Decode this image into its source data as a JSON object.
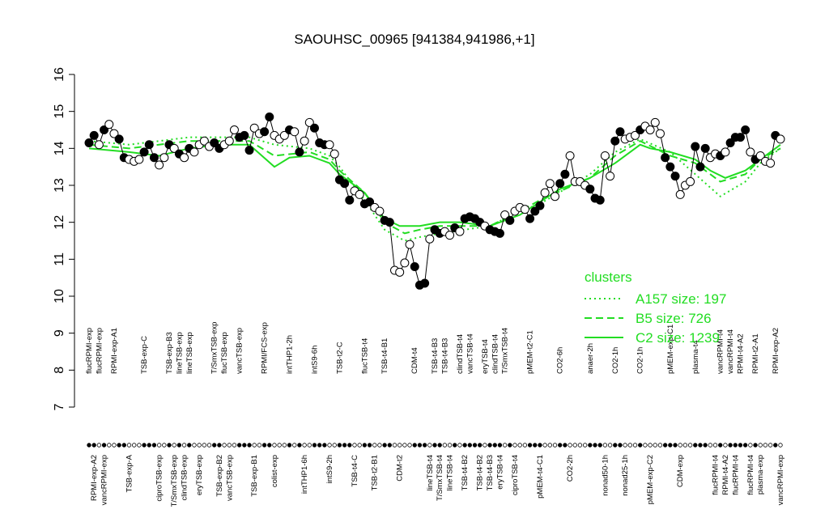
{
  "chart_data": {
    "type": "scatter",
    "title": "SAOUHSC_00965 [941384,941986,+1]",
    "ylim": [
      7,
      16
    ],
    "yticks": [
      7,
      8,
      9,
      10,
      11,
      12,
      13,
      14,
      15,
      16
    ],
    "point_line_color": "#000000",
    "categories": [
      "flucRPMI-exp",
      "RPMI-exp-A2",
      "flucRPMI-exp",
      "vancRPMI-exp",
      null,
      "RPMI-exp-A1",
      null,
      null,
      "TSB-exp-A",
      null,
      null,
      "TSB-exp-C",
      null,
      null,
      "ciproTSB-exp",
      null,
      "TSB-exp-B3",
      "T/SmxTSB-exp",
      "lineTSB-exp",
      "clindTSB-exp",
      "lineTSB-exp",
      null,
      "eryTSB-exp",
      null,
      null,
      "T/SmxTSB-exp",
      "TSB-exp-B2",
      "flucTSB-exp",
      "vancTSB-exp",
      null,
      "vancTSB-exp",
      null,
      null,
      "TSB-exp-B1",
      null,
      "RPMI/FCS-exp",
      null,
      "colist-exp",
      null,
      null,
      "intTHP1-2h",
      null,
      null,
      "intTHP1-6h",
      null,
      "intS9-6h",
      null,
      null,
      "intS9-2h",
      null,
      "TSB-t2-C",
      null,
      null,
      "TSB-t4-C",
      null,
      "flucTSB-t4",
      null,
      "TSB-t2-B1",
      null,
      "TSB-t4-B1",
      null,
      null,
      "CDM-t2",
      null,
      null,
      "CDM-t4",
      null,
      null,
      "lineTSB-t4",
      "TSB-t4-B3",
      "T/SmxTSB-t4",
      "TSB-t4-B3",
      "lineTSB-t4",
      null,
      "clindTSB-t4",
      "TSB-t4-B2",
      "vancTSB-t4",
      null,
      "TSB-t4-B2",
      "eryTSB-t4",
      "TSB-t4-B3",
      "clindTSB-t4",
      "eryTSB-t4",
      "T/SmxTSB-t4",
      null,
      "ciproTSB-t4",
      null,
      null,
      "pMEM-t2-C1",
      null,
      "pMEM-t4-C1",
      null,
      null,
      null,
      "CO2-6h",
      null,
      "CO2-2h",
      null,
      null,
      null,
      "anaer-2h",
      null,
      null,
      "nonad50-1h",
      null,
      "CO2-1h",
      null,
      "nonad25-1h",
      null,
      null,
      "CO2-1h",
      null,
      "pMEM-exp-C2",
      null,
      null,
      null,
      "pMEM-exp-C1",
      null,
      "CDM-exp",
      null,
      null,
      "plasma-t4",
      null,
      null,
      null,
      "flucRPMI-t4",
      "vancRPMI-t4",
      "RPMI-t4-A2",
      "vancRPMI-t4",
      "flucRPMI-t4",
      "RPMI-t4-A2",
      null,
      "flucRPMI-t4",
      "RPMI-t2-A1",
      "plasma-exp",
      null,
      null,
      "RPMI-exp-A2",
      "vancRPMI-exp"
    ],
    "values": [
      14.15,
      14.35,
      14.1,
      14.5,
      14.65,
      14.4,
      14.25,
      13.75,
      13.7,
      13.65,
      13.7,
      13.9,
      14.1,
      13.75,
      13.55,
      13.75,
      14.1,
      14.0,
      13.85,
      13.75,
      14.0,
      13.9,
      14.1,
      14.2,
      14.05,
      14.15,
      14.0,
      14.1,
      14.2,
      14.5,
      14.3,
      14.35,
      13.95,
      14.55,
      14.4,
      14.45,
      14.85,
      14.35,
      14.25,
      14.35,
      14.5,
      14.45,
      13.9,
      14.2,
      14.7,
      14.55,
      14.15,
      14.1,
      14.1,
      13.85,
      13.15,
      13.05,
      12.6,
      12.85,
      12.75,
      12.5,
      12.55,
      12.4,
      12.3,
      12.05,
      12.0,
      10.7,
      10.65,
      10.9,
      11.4,
      10.8,
      10.3,
      10.35,
      11.55,
      11.8,
      11.7,
      11.75,
      11.65,
      11.85,
      11.75,
      12.1,
      12.15,
      12.1,
      12.0,
      11.9,
      11.8,
      11.75,
      11.7,
      12.2,
      12.05,
      12.3,
      12.4,
      12.35,
      12.1,
      12.3,
      12.45,
      12.8,
      13.05,
      12.7,
      13.05,
      13.3,
      13.8,
      13.1,
      13.1,
      13.0,
      12.9,
      12.65,
      12.6,
      13.8,
      13.25,
      14.2,
      14.45,
      14.25,
      14.3,
      14.35,
      14.5,
      14.6,
      14.5,
      14.7,
      14.4,
      13.75,
      13.5,
      13.25,
      12.75,
      13.0,
      13.1,
      14.05,
      13.5,
      14.0,
      13.75,
      13.85,
      13.8,
      13.9,
      14.15,
      14.3,
      14.3,
      14.5,
      13.9,
      13.7,
      13.8,
      13.65,
      13.6,
      14.35,
      14.25
    ],
    "filled": [
      true,
      true,
      false,
      true,
      false,
      false,
      true,
      true,
      false,
      false,
      false,
      true,
      true,
      true,
      false,
      false,
      true,
      false,
      true,
      false,
      true,
      false,
      false,
      false,
      false,
      true,
      true,
      false,
      false,
      false,
      true,
      true,
      true,
      false,
      false,
      true,
      true,
      false,
      false,
      false,
      true,
      false,
      true,
      false,
      false,
      true,
      true,
      true,
      false,
      false,
      true,
      true,
      true,
      false,
      false,
      true,
      true,
      false,
      false,
      true,
      true,
      false,
      false,
      false,
      false,
      true,
      true,
      true,
      false,
      true,
      true,
      false,
      false,
      true,
      false,
      true,
      true,
      true,
      true,
      false,
      true,
      true,
      true,
      false,
      true,
      false,
      false,
      false,
      true,
      true,
      true,
      false,
      false,
      false,
      true,
      true,
      false,
      false,
      false,
      false,
      true,
      true,
      true,
      false,
      false,
      true,
      true,
      false,
      false,
      false,
      true,
      false,
      false,
      false,
      false,
      true,
      true,
      true,
      false,
      false,
      false,
      true,
      true,
      true,
      false,
      false,
      true,
      false,
      true,
      true,
      true,
      true,
      false,
      true,
      false,
      false,
      false,
      true,
      false
    ],
    "legend_title": "clusters",
    "legend": "right",
    "series": [
      {
        "name": "A157 size: 197",
        "color": "#22dd22",
        "style": "dotted",
        "x": [
          0,
          8,
          20,
          32,
          37,
          44,
          48,
          50,
          55,
          59,
          63,
          66,
          70,
          80,
          86,
          90,
          100,
          105,
          110,
          116,
          121,
          126,
          131,
          134,
          138
        ],
        "values": [
          14.2,
          14.1,
          14.3,
          14.3,
          14.1,
          14.0,
          13.8,
          13.5,
          12.6,
          11.8,
          11.5,
          11.6,
          11.7,
          11.9,
          12.3,
          12.5,
          13.3,
          13.9,
          14.25,
          13.9,
          13.3,
          12.7,
          13.1,
          13.6,
          14.0
        ]
      },
      {
        "name": "B5 size: 726",
        "color": "#22dd22",
        "style": "dashed",
        "x": [
          0,
          8,
          20,
          32,
          37,
          44,
          48,
          50,
          55,
          59,
          63,
          66,
          70,
          80,
          86,
          90,
          100,
          105,
          110,
          116,
          121,
          126,
          131,
          134,
          138
        ],
        "values": [
          14.1,
          14.0,
          14.2,
          14.2,
          13.8,
          13.9,
          13.7,
          13.4,
          12.8,
          12.0,
          11.7,
          11.8,
          11.9,
          11.9,
          12.3,
          12.6,
          13.2,
          13.8,
          14.2,
          13.8,
          13.6,
          13.1,
          13.3,
          13.7,
          14.0
        ]
      },
      {
        "name": "C2 size: 1239",
        "color": "#22dd22",
        "style": "solid",
        "x": [
          0,
          8,
          14,
          20,
          26,
          32,
          37,
          40,
          44,
          48,
          50,
          55,
          59,
          62,
          66,
          70,
          74,
          80,
          86,
          90,
          94,
          100,
          105,
          110,
          112,
          116,
          121,
          124,
          127,
          131,
          134,
          138
        ],
        "values": [
          14.0,
          13.9,
          13.8,
          14.0,
          14.1,
          14.1,
          13.5,
          13.75,
          13.8,
          13.6,
          13.3,
          12.8,
          12.1,
          11.9,
          11.9,
          12.0,
          12.0,
          11.9,
          12.2,
          12.55,
          12.9,
          13.2,
          13.6,
          14.1,
          14.0,
          13.9,
          13.7,
          13.4,
          13.2,
          13.4,
          13.7,
          14.1
        ]
      }
    ]
  }
}
